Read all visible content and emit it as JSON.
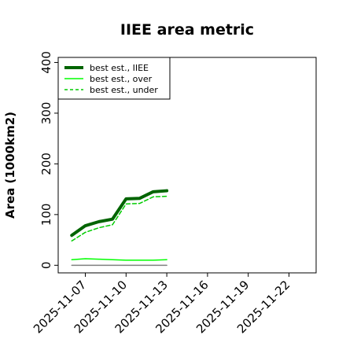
{
  "chart_data": {
    "type": "line",
    "title": "IIEE area metric",
    "xlabel": "",
    "ylabel": "Area (1000km2)",
    "x": [
      "2025-11-06",
      "2025-11-07",
      "2025-11-08",
      "2025-11-09",
      "2025-11-10",
      "2025-11-11",
      "2025-11-12",
      "2025-11-13"
    ],
    "x_ticks": [
      "2025-11-07",
      "2025-11-10",
      "2025-11-13",
      "2025-11-16",
      "2025-11-19",
      "2025-11-22"
    ],
    "xlim": [
      "2025-11-05",
      "2025-11-24"
    ],
    "y_ticks": [
      0,
      100,
      200,
      300,
      400
    ],
    "ylim": [
      -15,
      410
    ],
    "grid": false,
    "legend_position": "top-left",
    "series": [
      {
        "name": "best est., IIEE",
        "color": "#006400",
        "style": "solid",
        "width": 4,
        "values": [
          59,
          78,
          86,
          91,
          131,
          132,
          145,
          147
        ]
      },
      {
        "name": "best est., over",
        "color": "#00ff00",
        "style": "solid",
        "width": 1.5,
        "values": [
          11,
          13,
          12,
          11,
          10,
          10,
          10,
          11
        ]
      },
      {
        "name": "best est., under",
        "color": "#00cc00",
        "style": "dashed",
        "width": 1.5,
        "values": [
          48,
          65,
          74,
          80,
          121,
          122,
          135,
          136
        ]
      },
      {
        "name": "",
        "color": "#808080",
        "style": "solid",
        "width": 1.5,
        "values": [
          0,
          0,
          0,
          0,
          0,
          0,
          0,
          0
        ]
      }
    ]
  }
}
